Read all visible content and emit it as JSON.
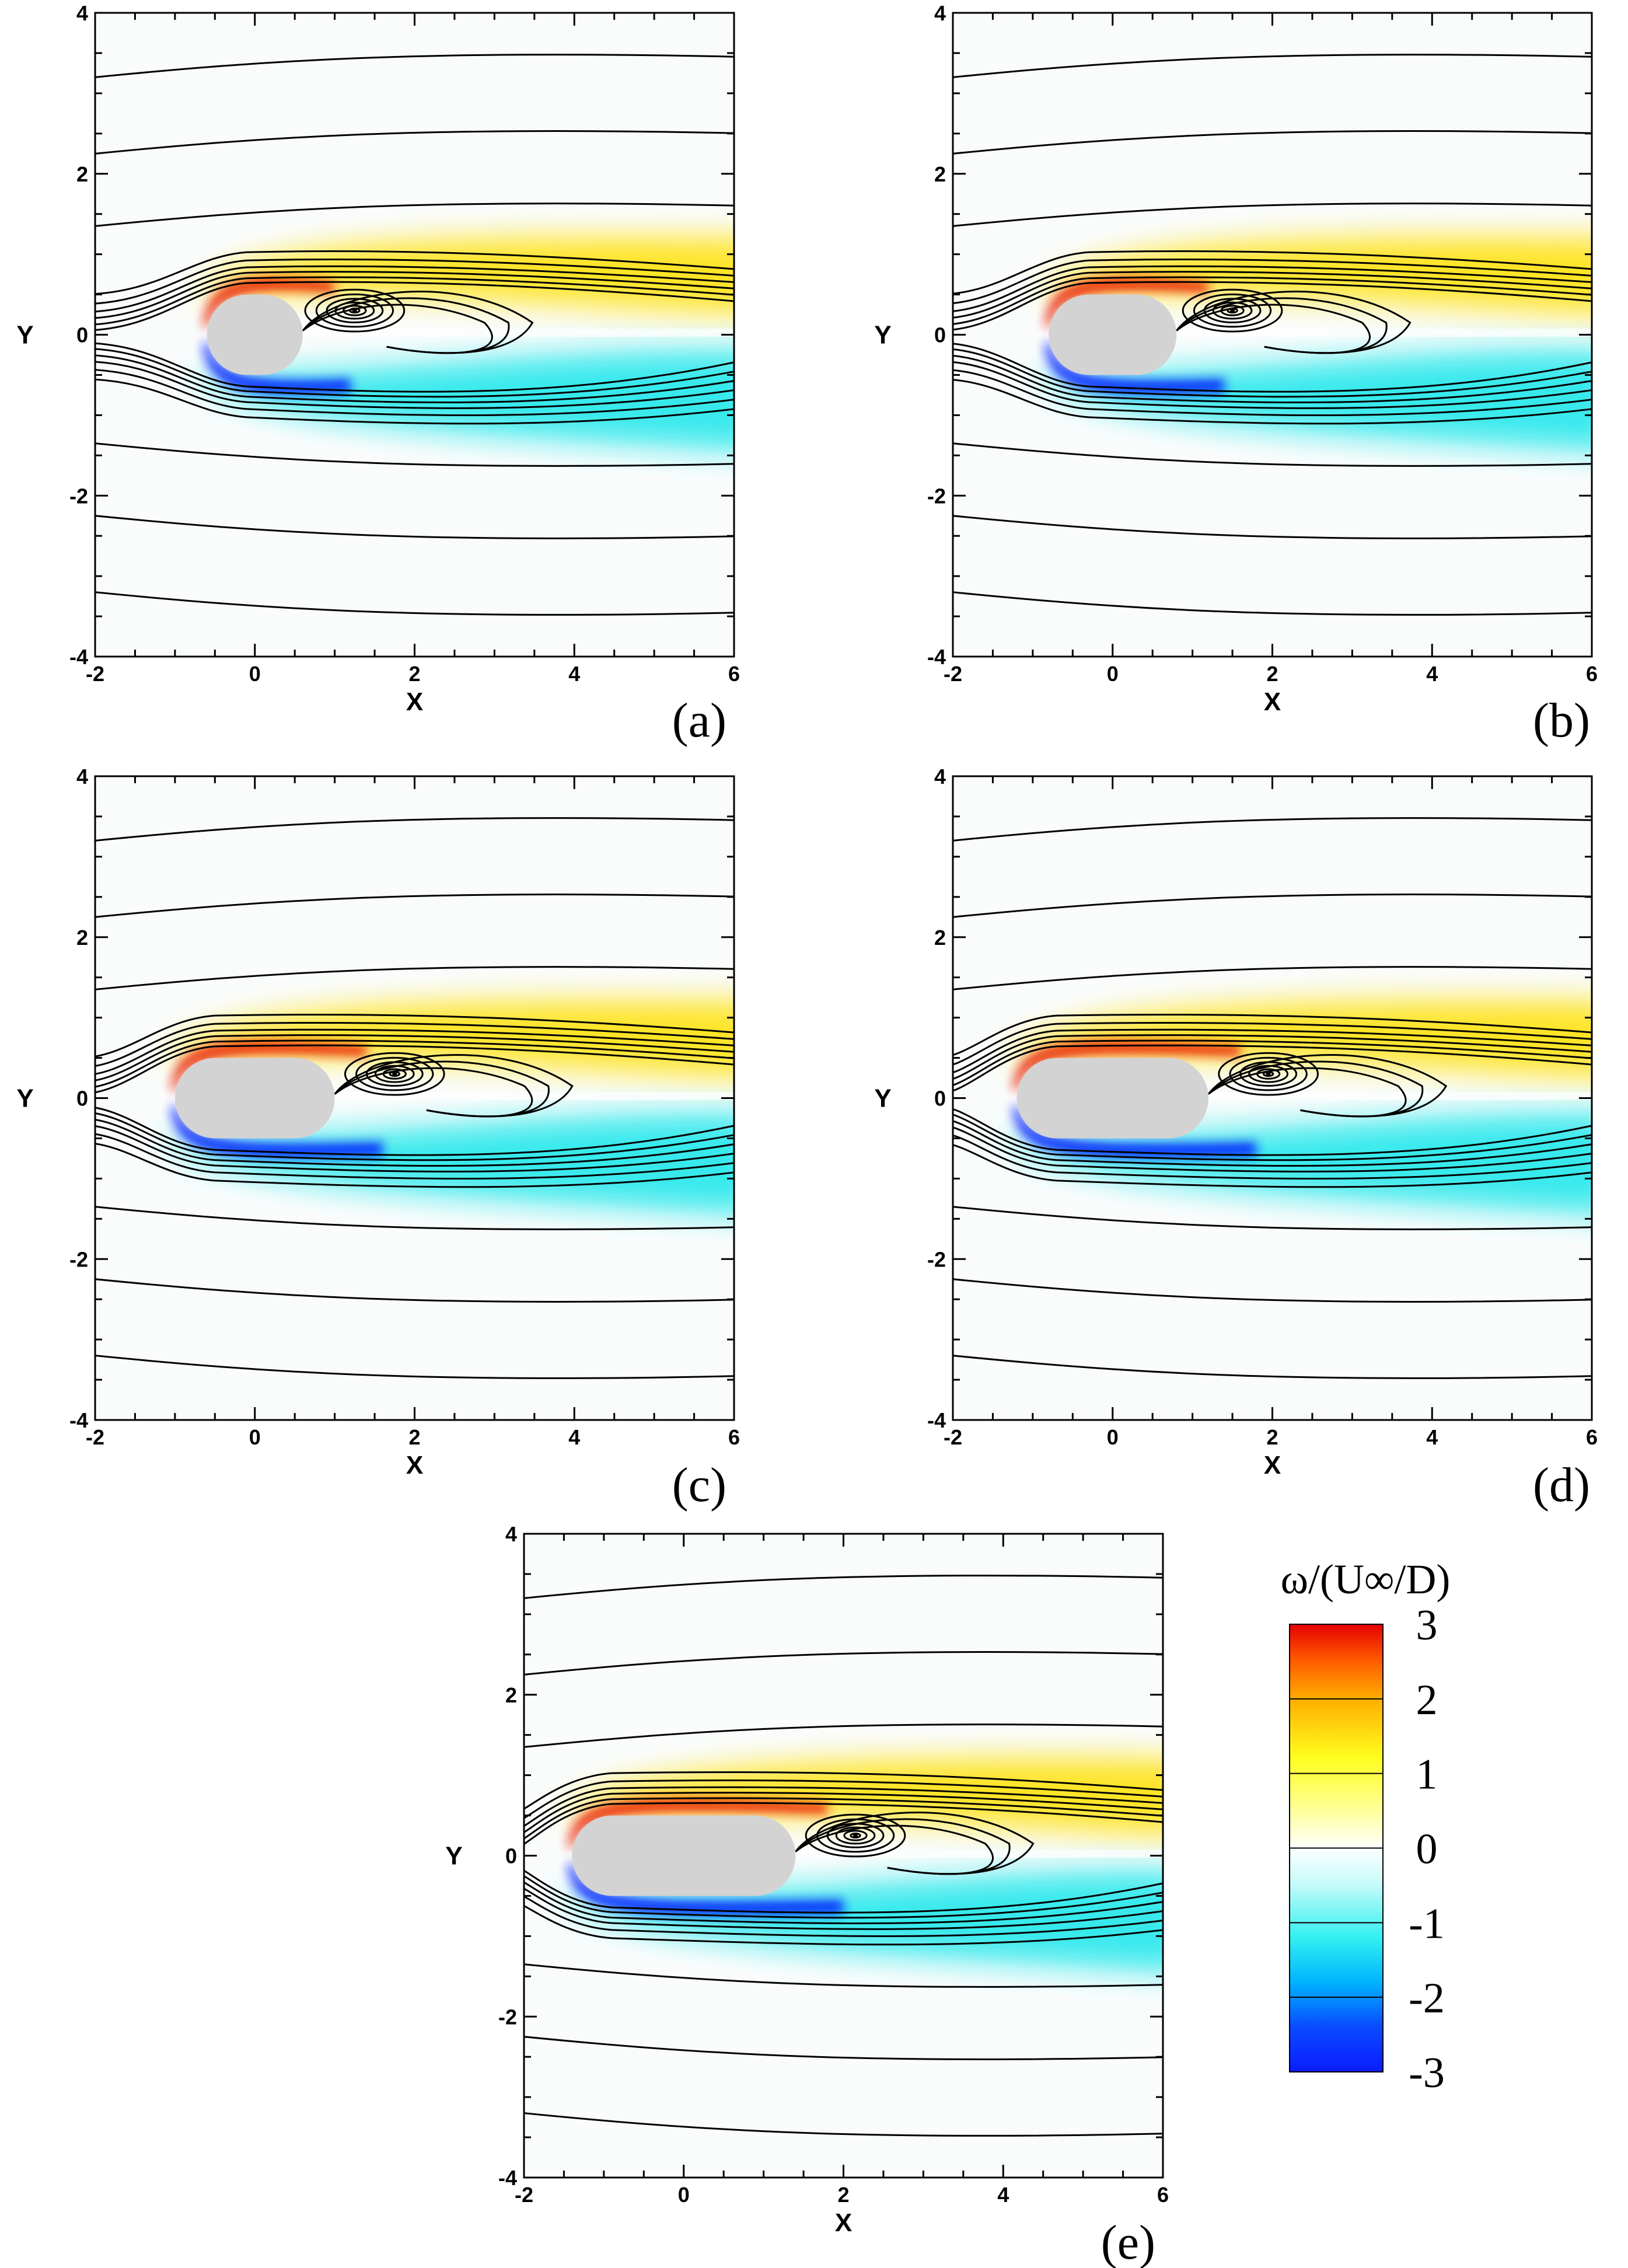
{
  "chart_data": [
    {
      "type": "heatmap",
      "panel_label": "(a)",
      "aspect_ratio": 1.2,
      "xlabel": "X",
      "ylabel": "Y",
      "xlim": [
        -2,
        6
      ],
      "ylim": [
        -4,
        4
      ],
      "xticks": [
        "-2",
        "0",
        "2",
        "4",
        "6"
      ],
      "yticks": [
        "-4",
        "-2",
        "0",
        "2",
        "4"
      ],
      "body_x_range": [
        -0.6,
        0.6
      ],
      "body_half_height": 0.5,
      "vortex_center": [
        1.25,
        0.3
      ]
    },
    {
      "type": "heatmap",
      "panel_label": "(b)",
      "aspect_ratio": 1.8,
      "xlabel": "X",
      "ylabel": "Y",
      "xlim": [
        -2,
        6
      ],
      "ylim": [
        -4,
        4
      ],
      "xticks": [
        "-2",
        "0",
        "2",
        "4",
        "6"
      ],
      "yticks": [
        "-4",
        "-2",
        "0",
        "2",
        "4"
      ],
      "body_x_range": [
        -0.8,
        0.8
      ],
      "body_half_height": 0.5,
      "vortex_center": [
        1.5,
        0.3
      ]
    },
    {
      "type": "heatmap",
      "panel_label": "(c)",
      "aspect_ratio": 2.2,
      "xlabel": "X",
      "ylabel": "Y",
      "xlim": [
        -2,
        6
      ],
      "ylim": [
        -4,
        4
      ],
      "xticks": [
        "-2",
        "0",
        "2",
        "4",
        "6"
      ],
      "yticks": [
        "-4",
        "-2",
        "0",
        "2",
        "4"
      ],
      "body_x_range": [
        -1.0,
        1.0
      ],
      "body_half_height": 0.5,
      "vortex_center": [
        1.75,
        0.3
      ]
    },
    {
      "type": "heatmap",
      "panel_label": "(d)",
      "aspect_ratio": 2.6,
      "xlabel": "X",
      "ylabel": "Y",
      "xlim": [
        -2,
        6
      ],
      "ylim": [
        -4,
        4
      ],
      "xticks": [
        "-2",
        "0",
        "2",
        "4",
        "6"
      ],
      "yticks": [
        "-4",
        "-2",
        "0",
        "2",
        "4"
      ],
      "body_x_range": [
        -1.2,
        1.2
      ],
      "body_half_height": 0.5,
      "vortex_center": [
        1.95,
        0.3
      ]
    },
    {
      "type": "heatmap",
      "panel_label": "(e)",
      "aspect_ratio": 3.0,
      "xlabel": "X",
      "ylabel": "Y",
      "xlim": [
        -2,
        6
      ],
      "ylim": [
        -4,
        4
      ],
      "xticks": [
        "-2",
        "0",
        "2",
        "4",
        "6"
      ],
      "yticks": [
        "-4",
        "-2",
        "0",
        "2",
        "4"
      ],
      "body_x_range": [
        -1.4,
        1.4
      ],
      "body_half_height": 0.5,
      "vortex_center": [
        2.15,
        0.25
      ]
    }
  ],
  "colorbar": {
    "title": "ω/(U∞/D)",
    "levels": [
      "3",
      "2",
      "1",
      "0",
      "-1",
      "-2",
      "-3"
    ],
    "range": [
      -3,
      3
    ],
    "colors": [
      "#0a1cff",
      "#00b4ff",
      "#33f0f0",
      "#ffffff",
      "#ffff33",
      "#ffaa00",
      "#e60000"
    ]
  },
  "colors": {
    "positive_vorticity": "#ffe000",
    "strong_positive": "#e81800",
    "negative_vorticity": "#14e6ea",
    "strong_negative": "#0014ff",
    "body": "#d3d3d3",
    "streamline": "#000000"
  }
}
